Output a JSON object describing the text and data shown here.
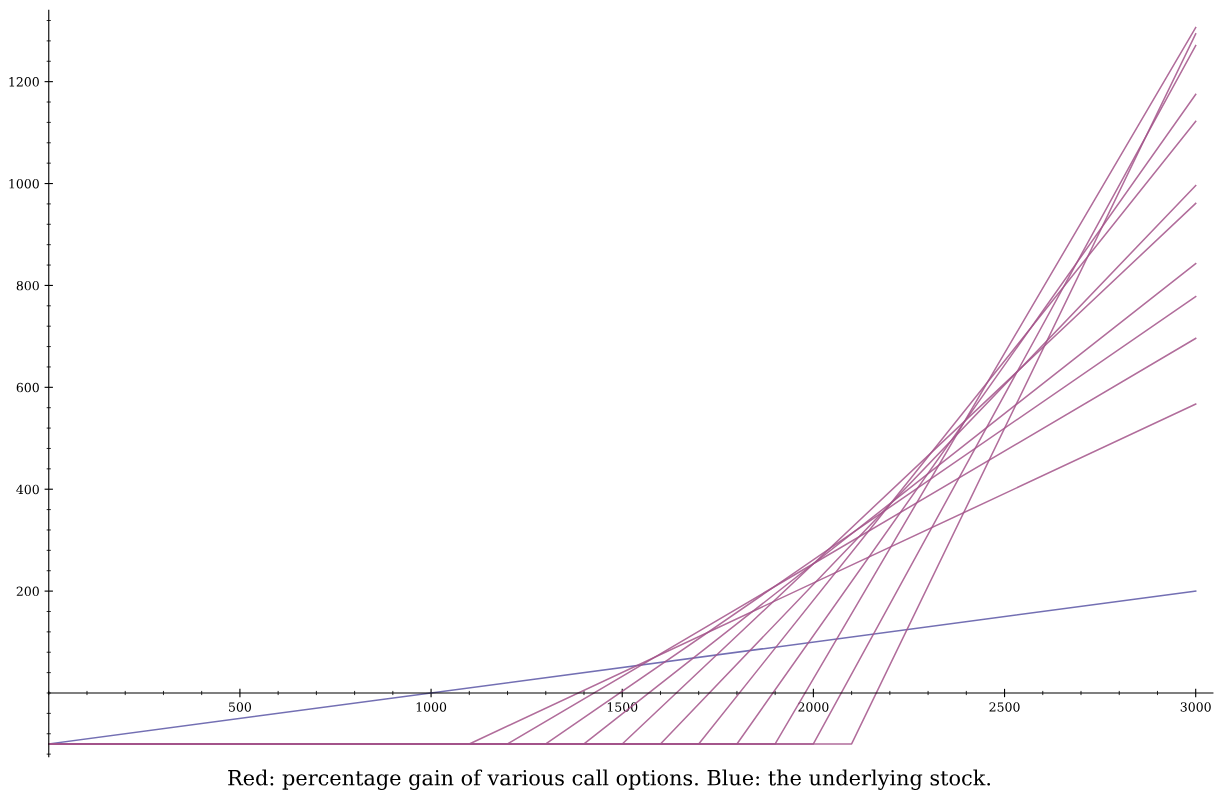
{
  "chart_data": {
    "type": "line",
    "annotations": [
      "Red: percentage gain of various call options. Blue: the underlying stock."
    ],
    "xlim": [
      0,
      3045
    ],
    "ylim": [
      -125,
      1340
    ],
    "xticks": [
      500,
      1000,
      1500,
      2000,
      2500,
      3000
    ],
    "yticks": [
      200,
      400,
      600,
      800,
      1000,
      1200
    ],
    "grid": false,
    "legend": false,
    "marker": "none",
    "line_style": "solid",
    "series": [
      {
        "color": "#5b56a6",
        "x": [
          0,
          3000
        ],
        "values": [
          -100,
          200
        ]
      },
      {
        "color": "#a3548a",
        "x": [
          0,
          1100,
          3000
        ],
        "values": [
          -100,
          -100,
          567
        ]
      },
      {
        "color": "#a3548a",
        "x": [
          0,
          1200,
          3000
        ],
        "values": [
          -100,
          -100,
          696
        ]
      },
      {
        "color": "#a3548a",
        "x": [
          0,
          1300,
          3000
        ],
        "values": [
          -100,
          -100,
          778
        ]
      },
      {
        "color": "#a3548a",
        "x": [
          0,
          1400,
          3000
        ],
        "values": [
          -100,
          -100,
          843
        ]
      },
      {
        "color": "#a3548a",
        "x": [
          0,
          1500,
          3000
        ],
        "values": [
          -100,
          -100,
          961
        ]
      },
      {
        "color": "#a3548a",
        "x": [
          0,
          1600,
          3000
        ],
        "values": [
          -100,
          -100,
          996
        ]
      },
      {
        "color": "#a3548a",
        "x": [
          0,
          1700,
          3000
        ],
        "values": [
          -100,
          -100,
          1122
        ]
      },
      {
        "color": "#a3548a",
        "x": [
          0,
          1800,
          3000
        ],
        "values": [
          -100,
          -100,
          1175
        ]
      },
      {
        "color": "#a3548a",
        "x": [
          0,
          1900,
          3000
        ],
        "values": [
          -100,
          -100,
          1306
        ]
      },
      {
        "color": "#a3548a",
        "x": [
          0,
          2000,
          3000
        ],
        "values": [
          -100,
          -100,
          1271
        ]
      },
      {
        "color": "#a3548a",
        "x": [
          0,
          2100,
          3000
        ],
        "values": [
          -100,
          -100,
          1294
        ]
      }
    ]
  }
}
